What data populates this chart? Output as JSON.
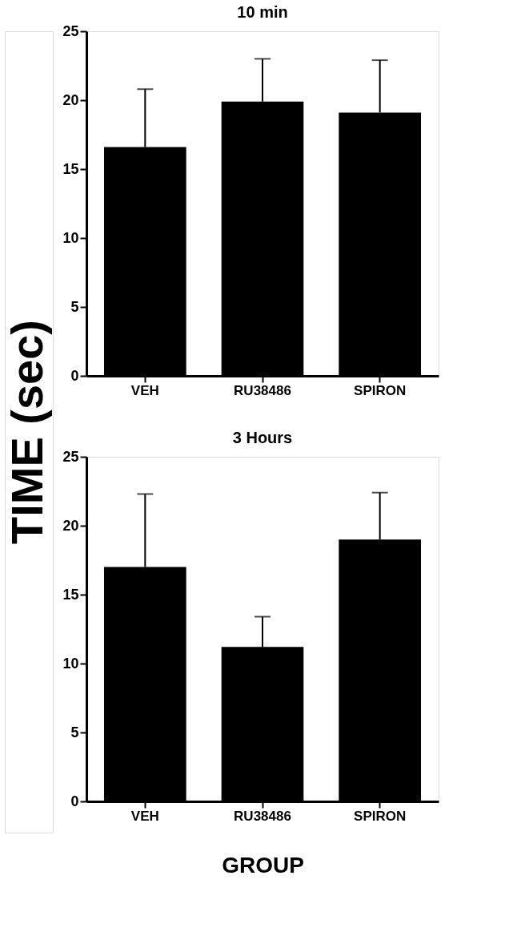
{
  "chart_data": [
    {
      "type": "bar",
      "title": "10 min",
      "ylabel": "TIME (sec)",
      "categories": [
        "VEH",
        "RU38486",
        "SPIRON"
      ],
      "values": [
        16.6,
        19.9,
        19.1
      ],
      "color": "#000000",
      "errors": [
        [
          16.6,
          20.8
        ],
        [
          19.9,
          23.0
        ],
        [
          19.1,
          22.9
        ]
      ],
      "ylim": [
        0,
        25
      ],
      "yticks": [
        0,
        5,
        10,
        15,
        20,
        25
      ],
      "grid": false
    },
    {
      "type": "bar",
      "title": "3 Hours",
      "xlabel": "GROUP",
      "categories": [
        "VEH",
        "RU38486",
        "SPIRON"
      ],
      "values": [
        17.0,
        11.2,
        19.0
      ],
      "color": "#000000",
      "errors": [
        [
          17.0,
          22.3
        ],
        [
          11.2,
          13.4
        ],
        [
          19.0,
          22.4
        ]
      ],
      "ylim": [
        0,
        25
      ],
      "yticks": [
        0,
        5,
        10,
        15,
        20,
        25
      ],
      "grid": false
    }
  ]
}
